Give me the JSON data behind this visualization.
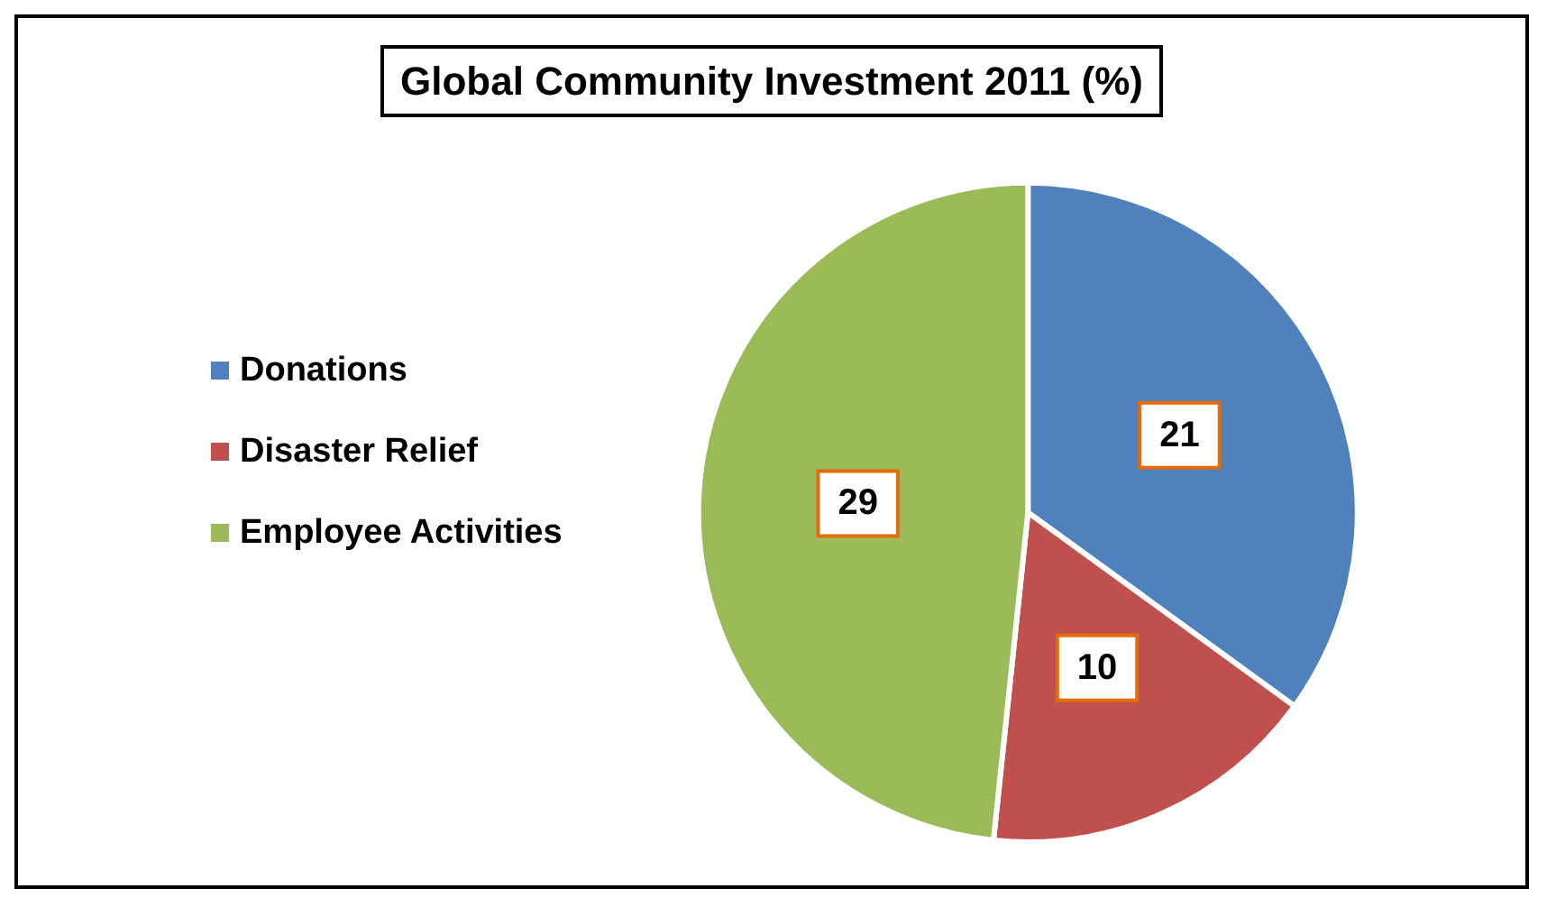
{
  "chart_data": {
    "type": "pie",
    "title": "Global Community Investment 2011 (%)",
    "categories": [
      "Donations",
      "Disaster Relief",
      "Employee Activities"
    ],
    "values": [
      21,
      10,
      29
    ],
    "colors": [
      "#4f81bd",
      "#c0504d",
      "#9bbb59"
    ],
    "data_labels": true,
    "legend": "left"
  }
}
